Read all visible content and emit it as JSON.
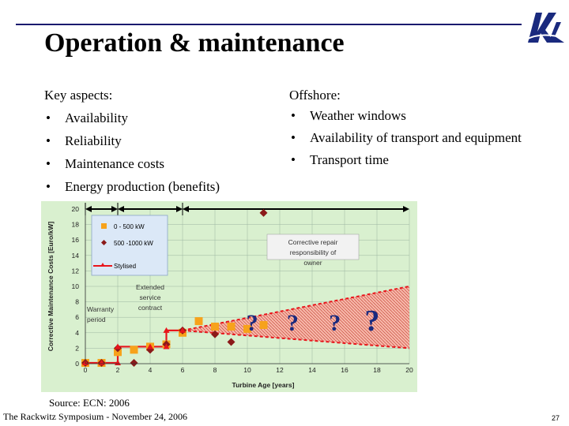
{
  "title": "Operation & maintenance",
  "left": {
    "heading": "Key aspects:",
    "items": [
      "Availability",
      "Reliability",
      "Maintenance costs",
      "Energy production (benefits)"
    ]
  },
  "right": {
    "heading": "Offshore:",
    "items": [
      "Weather windows",
      "Availability of transport and equipment",
      "Transport time"
    ]
  },
  "source": "Source: ECN: 2006",
  "footer": "The Rackwitz Symposium - November 24, 2006",
  "page_number": "27",
  "colors": {
    "title_rule": "#1a1a6e",
    "chart_bg": "#d9f0cf",
    "series_small": "#f7a21b",
    "series_large": "#8b1a1a",
    "stylised": "#e8151b",
    "band": "#f2998c"
  },
  "chart_data": {
    "type": "scatter",
    "xlabel": "Turbine Age [years]",
    "ylabel": "Corrective Maintenance Costs [Euro/kW]",
    "xlim": [
      0,
      20
    ],
    "ylim": [
      0,
      20
    ],
    "xticks": [
      "0",
      "2",
      "4",
      "6",
      "8",
      "10",
      "12",
      "14",
      "16",
      "18",
      "20"
    ],
    "yticks": [
      "0",
      "2",
      "4",
      "6",
      "8",
      "10",
      "12",
      "14",
      "16",
      "18",
      "20"
    ],
    "grid": true,
    "legend_position": "top-left",
    "legend": [
      "0 - 500 kW",
      "500 -1000 kW",
      "Stylised"
    ],
    "series": [
      {
        "name": "0 - 500 kW",
        "marker": "square",
        "points": [
          [
            0,
            0.1
          ],
          [
            1,
            0.1
          ],
          [
            2,
            1.5
          ],
          [
            3,
            1.8
          ],
          [
            4,
            2.2
          ],
          [
            5,
            2.5
          ],
          [
            6,
            4
          ],
          [
            7,
            5.5
          ],
          [
            8,
            4.8
          ],
          [
            9,
            4.8
          ],
          [
            10,
            4.5
          ],
          [
            11,
            5
          ]
        ]
      },
      {
        "name": "500 -1000 kW",
        "marker": "diamond",
        "points": [
          [
            0,
            0.1
          ],
          [
            1,
            0.1
          ],
          [
            2,
            2
          ],
          [
            3,
            0.1
          ],
          [
            4,
            1.8
          ],
          [
            5,
            2.5
          ],
          [
            6,
            4.3
          ],
          [
            8,
            3.8
          ],
          [
            9,
            2.8
          ],
          [
            11,
            19.5
          ]
        ]
      },
      {
        "name": "Stylised",
        "marker": "triangle",
        "points": [
          [
            0,
            0.1
          ],
          [
            1,
            0.1
          ],
          [
            2,
            0.1
          ],
          [
            2,
            2.2
          ],
          [
            4,
            2.2
          ],
          [
            5,
            2.2
          ],
          [
            5,
            4.3
          ],
          [
            6,
            4.3
          ]
        ]
      }
    ],
    "band": {
      "x_start": 6,
      "x_end": 20,
      "lower_at_start": 4.3,
      "upper_at_start": 4.3,
      "lower_at_end": 2,
      "upper_at_end": 10
    },
    "annotations": {
      "warranty": "Warranty period",
      "extended": "Extended service contract",
      "owner": "Corrective repair responsibility of owner",
      "question": "?"
    },
    "question_positions": [
      [
        10.3,
        4.3
      ],
      [
        12.8,
        4.3
      ],
      [
        15.4,
        4.3
      ],
      [
        17.7,
        4.3
      ]
    ],
    "arrow_segments": [
      [
        0,
        2
      ],
      [
        2,
        6
      ],
      [
        6,
        20
      ]
    ]
  }
}
